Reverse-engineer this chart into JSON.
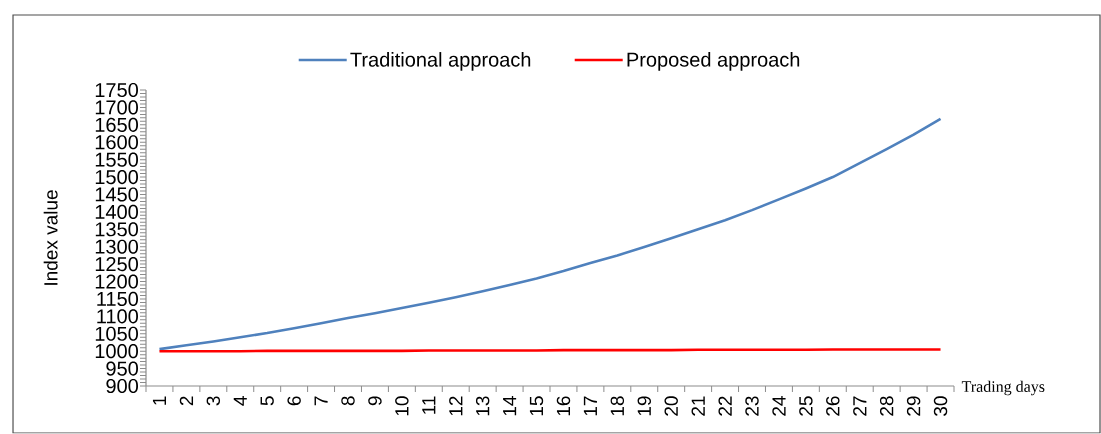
{
  "chart_data": {
    "type": "line",
    "xlabel": "Trading days",
    "ylabel": "Index value",
    "legend": "top",
    "categories": [
      "1",
      "2",
      "3",
      "4",
      "5",
      "6",
      "7",
      "8",
      "9",
      "10",
      "11",
      "12",
      "13",
      "14",
      "15",
      "16",
      "17",
      "18",
      "19",
      "20",
      "21",
      "22",
      "23",
      "24",
      "25",
      "26",
      "27",
      "28",
      "29",
      "30"
    ],
    "ylim": [
      900,
      1750
    ],
    "yticks": [
      900,
      950,
      1000,
      1050,
      1100,
      1150,
      1200,
      1250,
      1300,
      1350,
      1400,
      1450,
      1500,
      1550,
      1600,
      1650,
      1700,
      1750
    ],
    "series": [
      {
        "name": "Traditional approach",
        "color": "#4f81bd",
        "values": [
          1006,
          1017,
          1028,
          1040,
          1052,
          1066,
          1080,
          1095,
          1109,
          1124,
          1139,
          1155,
          1172,
          1190,
          1209,
          1230,
          1253,
          1275,
          1299,
          1324,
          1350,
          1376,
          1405,
          1436,
          1467,
          1500,
          1540,
          1580,
          1622,
          1667
        ]
      },
      {
        "name": "Proposed approach",
        "color": "#ff0000",
        "values": [
          1000,
          1000,
          1000,
          1000,
          1001,
          1001,
          1001,
          1001,
          1001,
          1001,
          1002,
          1002,
          1002,
          1002,
          1002,
          1003,
          1003,
          1003,
          1003,
          1003,
          1004,
          1004,
          1004,
          1004,
          1004,
          1005,
          1005,
          1005,
          1005,
          1005
        ]
      }
    ]
  }
}
